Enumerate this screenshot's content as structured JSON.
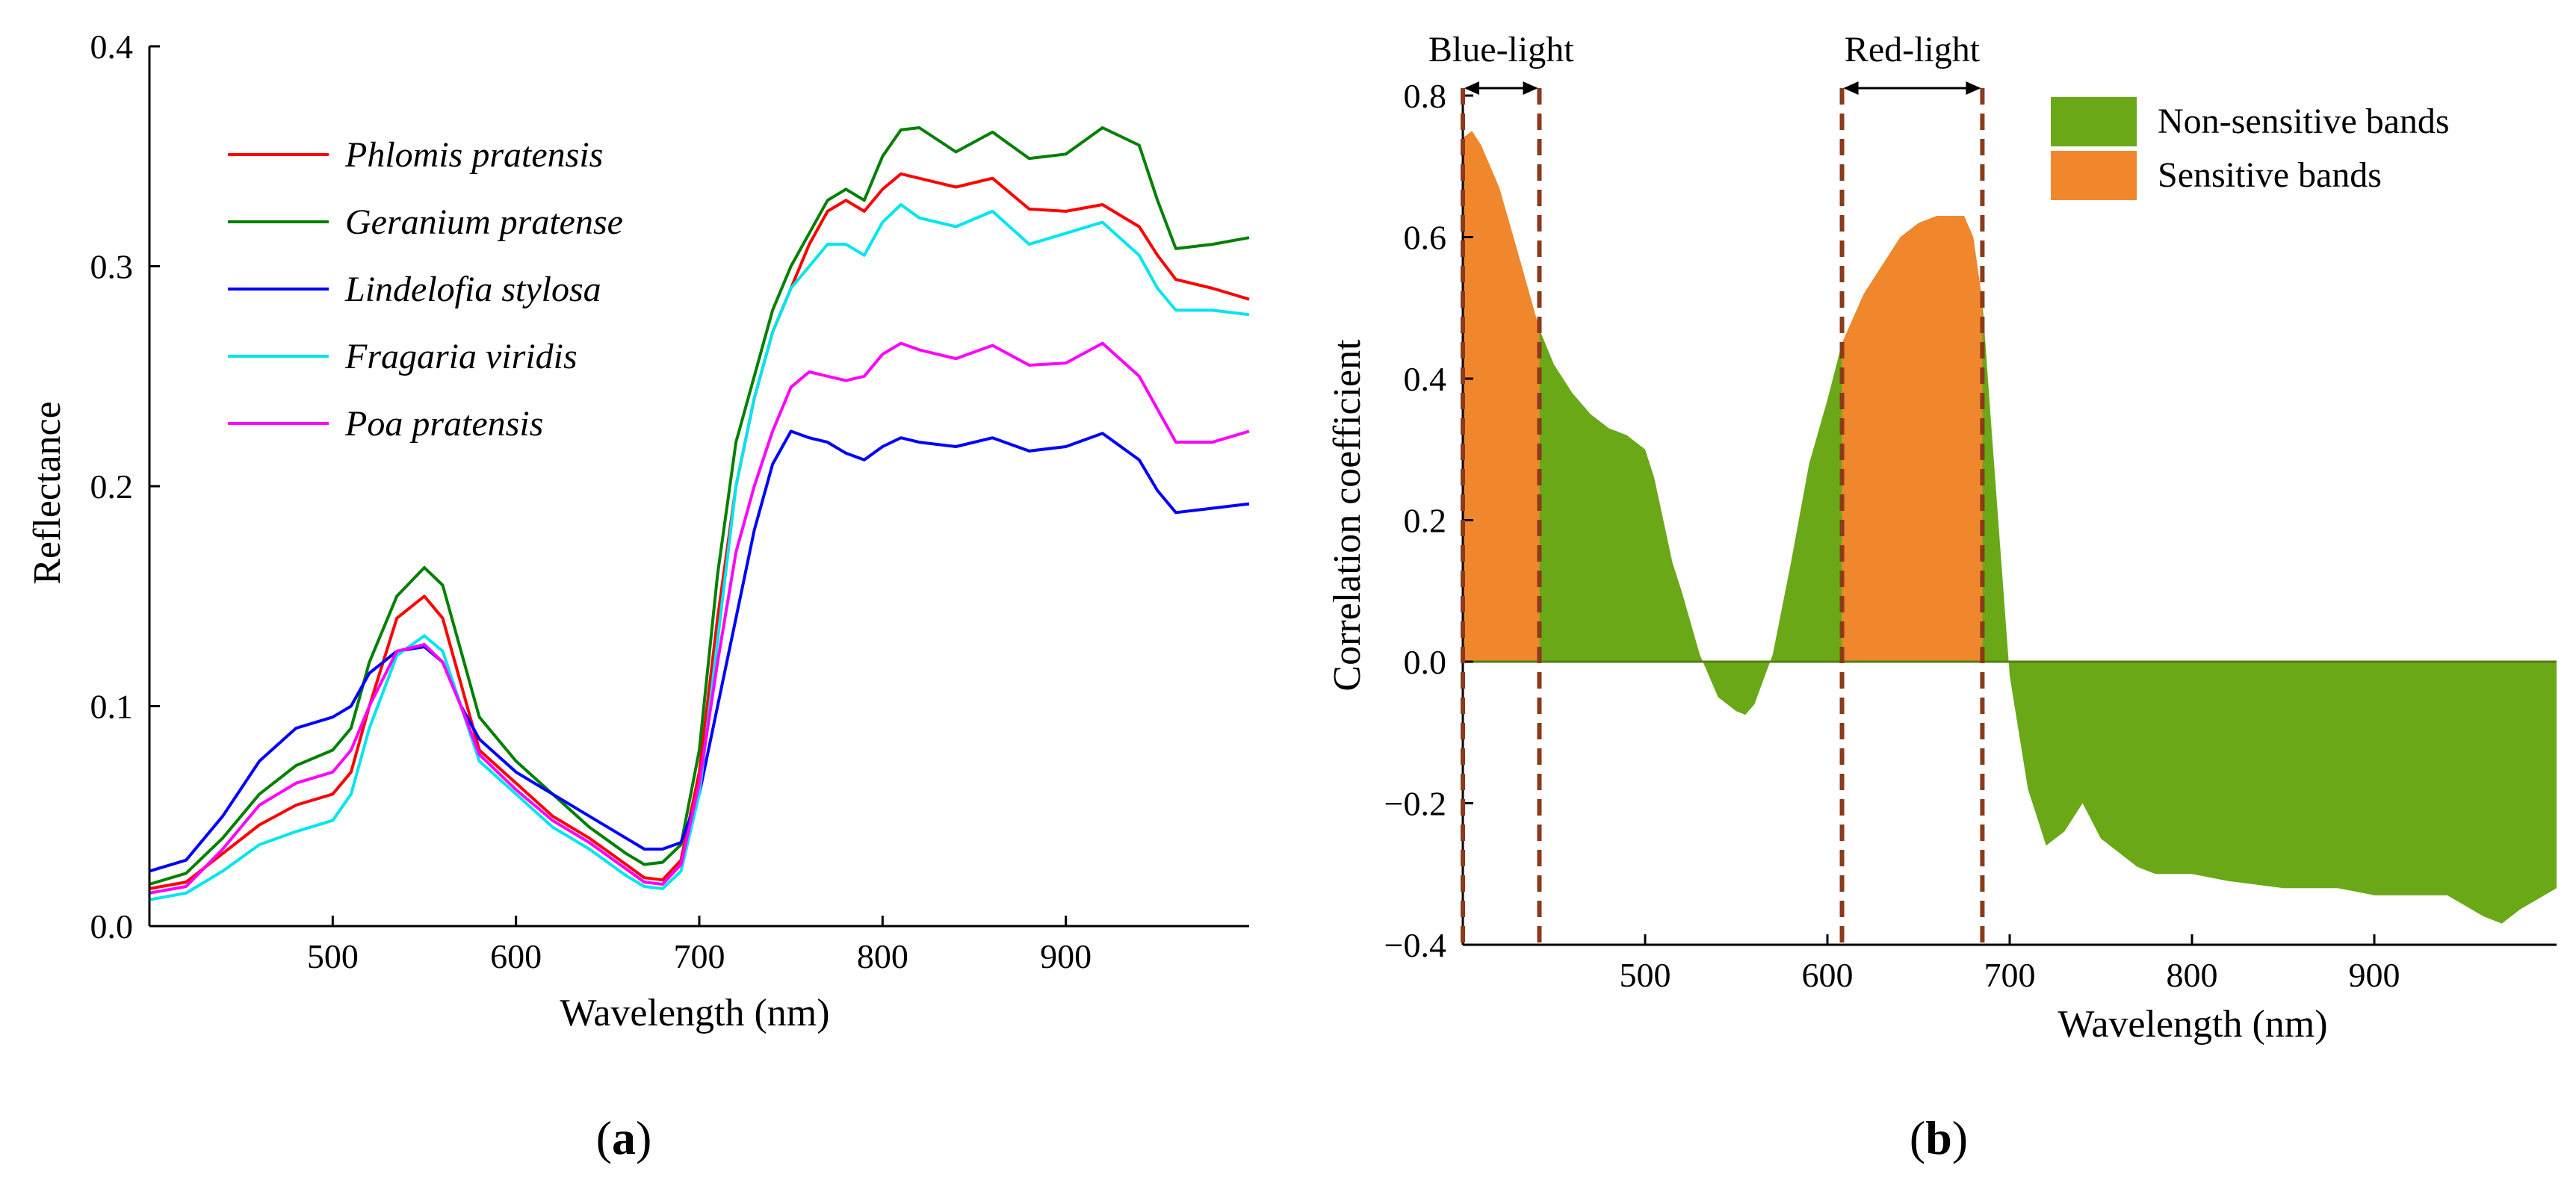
{
  "chart_data": [
    {
      "type": "line",
      "panel_label": "(a)",
      "panel_letter": "a",
      "xlabel": "Wavelength (nm)",
      "ylabel": "Reflectance",
      "xlim": [
        400,
        1000
      ],
      "ylim": [
        0.0,
        0.4
      ],
      "xticks": [
        500,
        600,
        700,
        800,
        900
      ],
      "xtick_labels": [
        "500",
        "600",
        "700",
        "800",
        "900"
      ],
      "yticks": [
        0.0,
        0.1,
        0.2,
        0.3,
        0.4
      ],
      "ytick_labels": [
        "0.0",
        "0.1",
        "0.2",
        "0.3",
        "0.4"
      ],
      "legend_position": "upper-left",
      "series": [
        {
          "name": "Phlomis pratensis",
          "color": "#ff0000",
          "x": [
            400,
            420,
            440,
            460,
            480,
            500,
            510,
            520,
            535,
            550,
            560,
            570,
            580,
            600,
            620,
            640,
            660,
            670,
            680,
            690,
            700,
            710,
            720,
            730,
            740,
            750,
            760,
            770,
            780,
            790,
            800,
            810,
            820,
            840,
            860,
            880,
            900,
            920,
            940,
            950,
            960,
            980,
            1000
          ],
          "y": [
            0.017,
            0.02,
            0.033,
            0.046,
            0.055,
            0.06,
            0.07,
            0.1,
            0.14,
            0.15,
            0.14,
            0.11,
            0.08,
            0.065,
            0.05,
            0.04,
            0.028,
            0.022,
            0.021,
            0.03,
            0.07,
            0.14,
            0.2,
            0.24,
            0.27,
            0.29,
            0.31,
            0.325,
            0.33,
            0.325,
            0.335,
            0.342,
            0.34,
            0.336,
            0.34,
            0.326,
            0.325,
            0.328,
            0.318,
            0.305,
            0.294,
            0.29,
            0.285
          ]
        },
        {
          "name": "Geranium pratense",
          "color": "#008000",
          "x": [
            400,
            420,
            440,
            460,
            480,
            500,
            510,
            520,
            535,
            550,
            560,
            570,
            580,
            600,
            620,
            640,
            660,
            670,
            680,
            690,
            700,
            710,
            720,
            730,
            740,
            750,
            760,
            770,
            780,
            790,
            800,
            810,
            820,
            840,
            860,
            880,
            900,
            920,
            940,
            950,
            960,
            980,
            1000
          ],
          "y": [
            0.019,
            0.024,
            0.04,
            0.06,
            0.073,
            0.08,
            0.09,
            0.12,
            0.15,
            0.163,
            0.155,
            0.125,
            0.095,
            0.075,
            0.06,
            0.045,
            0.033,
            0.028,
            0.029,
            0.037,
            0.08,
            0.16,
            0.22,
            0.25,
            0.28,
            0.3,
            0.315,
            0.33,
            0.335,
            0.33,
            0.35,
            0.362,
            0.363,
            0.352,
            0.361,
            0.349,
            0.351,
            0.363,
            0.355,
            0.33,
            0.308,
            0.31,
            0.313
          ]
        },
        {
          "name": "Lindelofia stylosa",
          "color": "#0000ff",
          "x": [
            400,
            420,
            440,
            460,
            480,
            500,
            510,
            520,
            535,
            550,
            560,
            570,
            580,
            600,
            620,
            640,
            660,
            670,
            680,
            690,
            700,
            710,
            720,
            730,
            740,
            750,
            760,
            770,
            780,
            790,
            800,
            810,
            820,
            840,
            860,
            880,
            900,
            920,
            940,
            950,
            960,
            980,
            1000
          ],
          "y": [
            0.025,
            0.03,
            0.05,
            0.075,
            0.09,
            0.095,
            0.1,
            0.115,
            0.125,
            0.127,
            0.12,
            0.1,
            0.085,
            0.07,
            0.06,
            0.05,
            0.04,
            0.035,
            0.035,
            0.038,
            0.06,
            0.1,
            0.14,
            0.18,
            0.21,
            0.225,
            0.222,
            0.22,
            0.215,
            0.212,
            0.218,
            0.222,
            0.22,
            0.218,
            0.222,
            0.216,
            0.218,
            0.224,
            0.212,
            0.198,
            0.188,
            0.19,
            0.192
          ]
        },
        {
          "name": "Fragaria viridis",
          "color": "#00e5ee",
          "x": [
            400,
            420,
            440,
            460,
            480,
            500,
            510,
            520,
            535,
            550,
            560,
            570,
            580,
            600,
            620,
            640,
            660,
            670,
            680,
            690,
            700,
            710,
            720,
            730,
            740,
            750,
            760,
            770,
            780,
            790,
            800,
            810,
            820,
            840,
            860,
            880,
            900,
            920,
            940,
            950,
            960,
            980,
            1000
          ],
          "y": [
            0.012,
            0.015,
            0.025,
            0.037,
            0.043,
            0.048,
            0.06,
            0.09,
            0.123,
            0.132,
            0.125,
            0.1,
            0.075,
            0.06,
            0.045,
            0.035,
            0.023,
            0.018,
            0.017,
            0.025,
            0.06,
            0.13,
            0.2,
            0.24,
            0.27,
            0.29,
            0.3,
            0.31,
            0.31,
            0.305,
            0.32,
            0.328,
            0.322,
            0.318,
            0.325,
            0.31,
            0.315,
            0.32,
            0.305,
            0.29,
            0.28,
            0.28,
            0.278
          ]
        },
        {
          "name": "Poa pratensis",
          "color": "#ff00ff",
          "x": [
            400,
            420,
            440,
            460,
            480,
            500,
            510,
            520,
            535,
            550,
            560,
            570,
            580,
            600,
            620,
            640,
            660,
            670,
            680,
            690,
            700,
            710,
            720,
            730,
            740,
            750,
            760,
            770,
            780,
            790,
            800,
            810,
            820,
            840,
            860,
            880,
            900,
            920,
            940,
            950,
            960,
            980,
            1000
          ],
          "y": [
            0.015,
            0.018,
            0.035,
            0.055,
            0.065,
            0.07,
            0.08,
            0.1,
            0.125,
            0.128,
            0.12,
            0.1,
            0.078,
            0.062,
            0.048,
            0.038,
            0.026,
            0.02,
            0.019,
            0.028,
            0.065,
            0.12,
            0.17,
            0.2,
            0.225,
            0.245,
            0.252,
            0.25,
            0.248,
            0.25,
            0.26,
            0.265,
            0.262,
            0.258,
            0.264,
            0.255,
            0.256,
            0.265,
            0.25,
            0.235,
            0.22,
            0.22,
            0.225
          ]
        }
      ]
    },
    {
      "type": "area",
      "panel_label": "(b)",
      "panel_letter": "b",
      "xlabel": "Wavelength (nm)",
      "ylabel": "Correlation coefficient",
      "xlim": [
        400,
        1000
      ],
      "ylim": [
        -0.4,
        0.8
      ],
      "xticks": [
        500,
        600,
        700,
        800,
        900
      ],
      "xtick_labels": [
        "500",
        "600",
        "700",
        "800",
        "900"
      ],
      "yticks": [
        -0.4,
        -0.2,
        0.0,
        0.2,
        0.4,
        0.6,
        0.8
      ],
      "ytick_labels": [
        "−0.4",
        "−0.2",
        "0.0",
        "0.2",
        "0.4",
        "0.6",
        "0.8"
      ],
      "legend_position": "upper-right",
      "legend": [
        {
          "name": "Non-sensitive bands",
          "color": "#6aa818"
        },
        {
          "name": "Sensitive bands",
          "color": "#f0872d"
        }
      ],
      "colors": {
        "nonsensitive": "#6aa818",
        "sensitive": "#f0872d",
        "boundary": "#8b3a1a"
      },
      "bands": [
        {
          "name": "Blue-light",
          "range": [
            400,
            442
          ]
        },
        {
          "name": "Red-light",
          "range": [
            608,
            685
          ]
        }
      ],
      "x": [
        400,
        405,
        410,
        420,
        430,
        442,
        450,
        460,
        470,
        480,
        490,
        500,
        505,
        510,
        515,
        520,
        530,
        540,
        550,
        555,
        560,
        570,
        580,
        590,
        600,
        608,
        620,
        630,
        640,
        650,
        660,
        670,
        675,
        680,
        685,
        690,
        700,
        710,
        720,
        730,
        740,
        750,
        760,
        770,
        780,
        790,
        800,
        820,
        850,
        880,
        900,
        920,
        940,
        960,
        970,
        980,
        1000
      ],
      "y": [
        0.74,
        0.75,
        0.73,
        0.67,
        0.58,
        0.47,
        0.42,
        0.38,
        0.35,
        0.33,
        0.32,
        0.3,
        0.26,
        0.2,
        0.14,
        0.1,
        0.01,
        -0.05,
        -0.07,
        -0.075,
        -0.06,
        0.01,
        0.14,
        0.28,
        0.37,
        0.45,
        0.52,
        0.56,
        0.6,
        0.62,
        0.63,
        0.63,
        0.63,
        0.6,
        0.51,
        0.33,
        -0.02,
        -0.18,
        -0.26,
        -0.24,
        -0.2,
        -0.25,
        -0.27,
        -0.29,
        -0.3,
        -0.3,
        -0.3,
        -0.31,
        -0.32,
        -0.32,
        -0.33,
        -0.33,
        -0.33,
        -0.36,
        -0.37,
        -0.35,
        -0.32
      ]
    }
  ]
}
